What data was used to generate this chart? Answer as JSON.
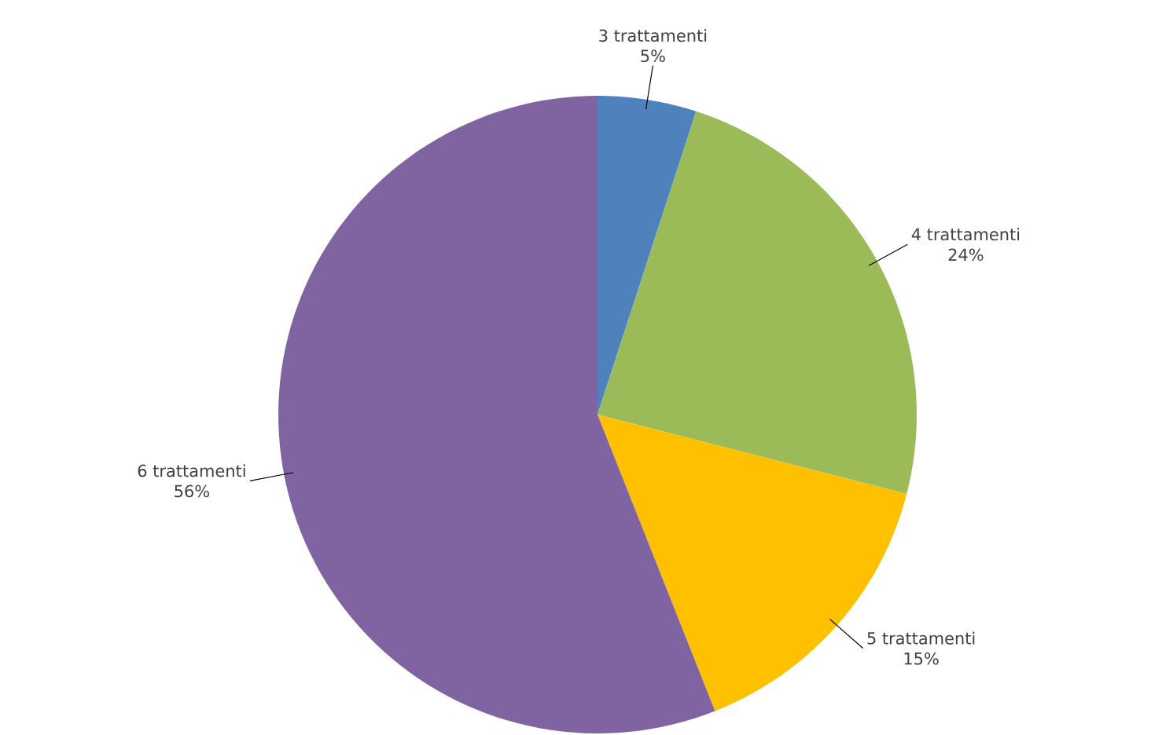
{
  "chart_data": {
    "type": "pie",
    "categories": [
      "3 trattamenti",
      "4 trattamenti",
      "5 trattamenti",
      "6 trattamenti"
    ],
    "values": [
      5,
      24,
      15,
      56
    ],
    "value_labels": [
      "5%",
      "24%",
      "15%",
      "56%"
    ],
    "colors": [
      "#4f81bd",
      "#9bbb59",
      "#ffc000",
      "#8064a2"
    ]
  }
}
